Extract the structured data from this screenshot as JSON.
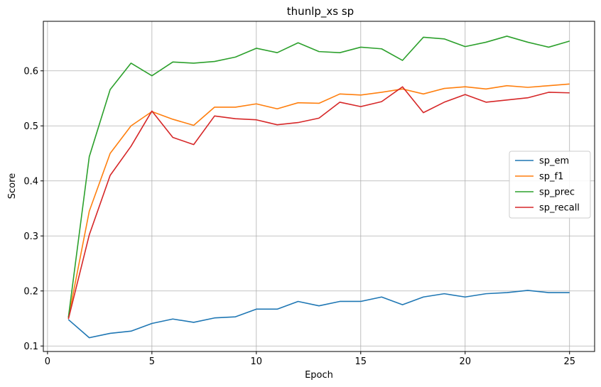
{
  "chart_data": {
    "type": "line",
    "title": "thunlp_xs sp",
    "xlabel": "Epoch",
    "ylabel": "Score",
    "xlim": [
      -0.2,
      26.2
    ],
    "ylim": [
      0.09,
      0.69
    ],
    "xticks": [
      0,
      5,
      10,
      15,
      20,
      25
    ],
    "yticks": [
      0.1,
      0.2,
      0.3,
      0.4,
      0.5,
      0.6
    ],
    "grid": true,
    "legend_position": "center-right",
    "x": [
      1,
      2,
      3,
      4,
      5,
      6,
      7,
      8,
      9,
      10,
      11,
      12,
      13,
      14,
      15,
      16,
      17,
      18,
      19,
      20,
      21,
      22,
      23,
      24,
      25
    ],
    "series": [
      {
        "name": "sp_em",
        "color": "#1f77b4",
        "values": [
          0.148,
          0.115,
          0.123,
          0.127,
          0.141,
          0.149,
          0.143,
          0.151,
          0.153,
          0.167,
          0.167,
          0.181,
          0.173,
          0.181,
          0.181,
          0.189,
          0.175,
          0.189,
          0.195,
          0.189,
          0.195,
          0.197,
          0.201,
          0.197,
          0.197
        ]
      },
      {
        "name": "sp_f1",
        "color": "#ff7f0e",
        "values": [
          0.151,
          0.345,
          0.45,
          0.5,
          0.526,
          0.512,
          0.501,
          0.534,
          0.534,
          0.54,
          0.531,
          0.542,
          0.541,
          0.558,
          0.556,
          0.561,
          0.567,
          0.558,
          0.568,
          0.571,
          0.567,
          0.573,
          0.57,
          0.573,
          0.576
        ]
      },
      {
        "name": "sp_prec",
        "color": "#2ca02c",
        "values": [
          0.152,
          0.444,
          0.566,
          0.614,
          0.591,
          0.616,
          0.614,
          0.617,
          0.625,
          0.641,
          0.633,
          0.651,
          0.635,
          0.633,
          0.643,
          0.64,
          0.619,
          0.661,
          0.658,
          0.644,
          0.652,
          0.663,
          0.652,
          0.643,
          0.654
        ]
      },
      {
        "name": "sp_recall",
        "color": "#d62728",
        "values": [
          0.149,
          0.302,
          0.41,
          0.463,
          0.527,
          0.479,
          0.466,
          0.518,
          0.513,
          0.511,
          0.502,
          0.506,
          0.514,
          0.543,
          0.535,
          0.544,
          0.571,
          0.524,
          0.543,
          0.557,
          0.543,
          0.547,
          0.551,
          0.561,
          0.56
        ]
      }
    ]
  }
}
